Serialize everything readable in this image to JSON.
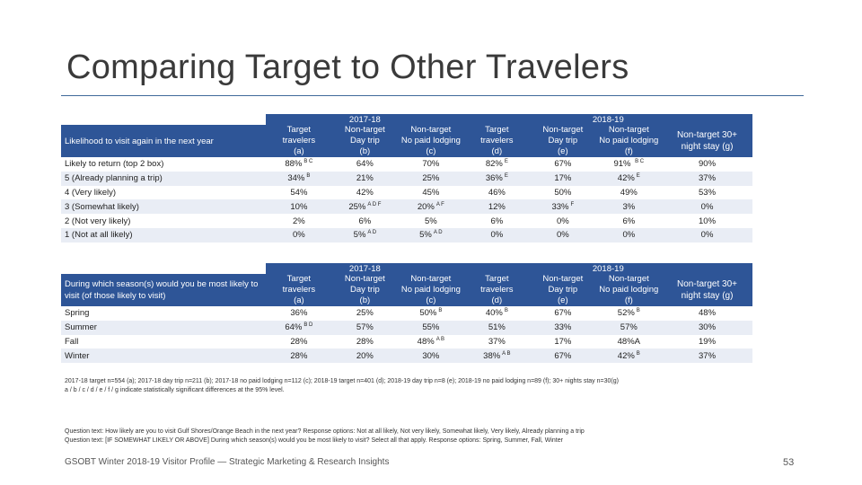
{
  "title": "Comparing Target to Other Travelers",
  "table1": {
    "question": "Likelihood to visit again in the next year",
    "group_labels": [
      "2017-18",
      "2018-19"
    ],
    "columns": [
      {
        "l1": "Target",
        "l2": "travelers",
        "l3": "(a)"
      },
      {
        "l1": "Non-target",
        "l2": "Day trip",
        "l3": "(b)"
      },
      {
        "l1": "Non-target",
        "l2": "No paid lodging",
        "l3": "(c)"
      },
      {
        "l1": "Target",
        "l2": "travelers",
        "l3": "(d)"
      },
      {
        "l1": "Non-target",
        "l2": "Day trip",
        "l3": "(e)"
      },
      {
        "l1": "Non-target",
        "l2": "No paid lodging",
        "l3": "(f)"
      },
      {
        "l1": "Non-target 30+",
        "l2": "night stay (g)",
        "l3": ""
      }
    ],
    "rows": [
      {
        "label": "Likely to return (top 2 box)",
        "cells": [
          {
            "v": "88%",
            "s": "B C"
          },
          {
            "v": "64%",
            "s": ""
          },
          {
            "v": "70%",
            "s": ""
          },
          {
            "v": "82%",
            "s": "E"
          },
          {
            "v": "67%",
            "s": ""
          },
          {
            "v": "91% ",
            "s": "B C"
          },
          {
            "v": "90%",
            "s": ""
          }
        ]
      },
      {
        "label": "5 (Already planning a trip)",
        "cells": [
          {
            "v": "34%",
            "s": "B"
          },
          {
            "v": "21%",
            "s": ""
          },
          {
            "v": "25%",
            "s": ""
          },
          {
            "v": "36%",
            "s": "E"
          },
          {
            "v": "17%",
            "s": ""
          },
          {
            "v": "42%",
            "s": "E"
          },
          {
            "v": "37%",
            "s": ""
          }
        ]
      },
      {
        "label": "4 (Very likely)",
        "cells": [
          {
            "v": "54%",
            "s": ""
          },
          {
            "v": "42%",
            "s": ""
          },
          {
            "v": "45%",
            "s": ""
          },
          {
            "v": "46%",
            "s": ""
          },
          {
            "v": "50%",
            "s": ""
          },
          {
            "v": "49%",
            "s": ""
          },
          {
            "v": "53%",
            "s": ""
          }
        ]
      },
      {
        "label": "3 (Somewhat likely)",
        "cells": [
          {
            "v": "10%",
            "s": ""
          },
          {
            "v": "25%",
            "s": "A D F"
          },
          {
            "v": "20%",
            "s": "A F"
          },
          {
            "v": "12%",
            "s": ""
          },
          {
            "v": "33%",
            "s": "F"
          },
          {
            "v": "3%",
            "s": ""
          },
          {
            "v": "0%",
            "s": ""
          }
        ]
      },
      {
        "label": "2 (Not very likely)",
        "cells": [
          {
            "v": "2%",
            "s": ""
          },
          {
            "v": "6%",
            "s": ""
          },
          {
            "v": "5%",
            "s": ""
          },
          {
            "v": "6%",
            "s": ""
          },
          {
            "v": "0%",
            "s": ""
          },
          {
            "v": "6%",
            "s": ""
          },
          {
            "v": "10%",
            "s": ""
          }
        ]
      },
      {
        "label": "1 (Not at all likely)",
        "cells": [
          {
            "v": "0%",
            "s": ""
          },
          {
            "v": "5%",
            "s": "A D"
          },
          {
            "v": "5%",
            "s": "A D"
          },
          {
            "v": "0%",
            "s": ""
          },
          {
            "v": "0%",
            "s": ""
          },
          {
            "v": "0%",
            "s": ""
          },
          {
            "v": "0%",
            "s": ""
          }
        ]
      }
    ]
  },
  "table2": {
    "question": "During which season(s) would you be most likely to visit (of those likely to visit)",
    "group_labels": [
      "2017-18",
      "2018-19"
    ],
    "columns": [
      {
        "l1": "Target",
        "l2": "travelers",
        "l3": "(a)"
      },
      {
        "l1": "Non-target",
        "l2": "Day trip",
        "l3": "(b)"
      },
      {
        "l1": "Non-target",
        "l2": "No paid lodging",
        "l3": "(c)"
      },
      {
        "l1": "Target",
        "l2": "travelers",
        "l3": "(d)"
      },
      {
        "l1": "Non-target",
        "l2": "Day trip",
        "l3": "(e)"
      },
      {
        "l1": "Non-target",
        "l2": "No paid lodging",
        "l3": "(f)"
      },
      {
        "l1": "Non-target 30+",
        "l2": "night stay (g)",
        "l3": ""
      }
    ],
    "rows": [
      {
        "label": "Spring",
        "cells": [
          {
            "v": "36%",
            "s": ""
          },
          {
            "v": "25%",
            "s": ""
          },
          {
            "v": "50%",
            "s": "B"
          },
          {
            "v": "40%",
            "s": "B"
          },
          {
            "v": "67%",
            "s": ""
          },
          {
            "v": "52%",
            "s": "B"
          },
          {
            "v": "48%",
            "s": ""
          }
        ]
      },
      {
        "label": "Summer",
        "cells": [
          {
            "v": "64%",
            "s": "B D"
          },
          {
            "v": "57%",
            "s": ""
          },
          {
            "v": "55%",
            "s": ""
          },
          {
            "v": "51%",
            "s": ""
          },
          {
            "v": "33%",
            "s": ""
          },
          {
            "v": "57%",
            "s": ""
          },
          {
            "v": "30%",
            "s": ""
          }
        ]
      },
      {
        "label": "Fall",
        "cells": [
          {
            "v": "28%",
            "s": ""
          },
          {
            "v": "28%",
            "s": ""
          },
          {
            "v": "48%",
            "s": "A B"
          },
          {
            "v": "37%",
            "s": ""
          },
          {
            "v": "17%",
            "s": ""
          },
          {
            "v": "48%A",
            "s": ""
          },
          {
            "v": "19%",
            "s": ""
          }
        ]
      },
      {
        "label": "Winter",
        "cells": [
          {
            "v": "28%",
            "s": ""
          },
          {
            "v": "20%",
            "s": ""
          },
          {
            "v": "30%",
            "s": ""
          },
          {
            "v": "38%",
            "s": "A B"
          },
          {
            "v": "67%",
            "s": ""
          },
          {
            "v": "42%",
            "s": "B"
          },
          {
            "v": "37%",
            "s": ""
          }
        ]
      }
    ]
  },
  "notes": {
    "base": "2017-18 target n=554 (a); 2017-18 day trip n=211 (b); 2017-18 no paid lodging n=112 (c); 2018-19 target n=401 (d); 2018-19 day trip n=8 (e); 2018-19 no paid lodging n=89 (f); 30+ nights stay n=30(g)",
    "sig": "a / b / c / d / e / f / g  indicate statistically significant differences at the 95% level.",
    "q1": "Question text: How likely are you to visit Gulf Shores/Orange Beach in the next year? Response options: Not at all likely, Not very likely, Somewhat likely, Very likely, Already planning a trip",
    "q2": "Question text: [IF SOMEWHAT LIKELY OR ABOVE] During which season(s) would you be most likely to visit? Select all that apply. Response options: Spring, Summer, Fall, Winter"
  },
  "footer": "GSOBT Winter 2018-19 Visitor Profile — Strategic Marketing & Research Insights",
  "page_number": "53",
  "colors": {
    "header_bg": "#2e5597",
    "alt_row": "#e9edf5",
    "rule": "#3f6a9a"
  }
}
